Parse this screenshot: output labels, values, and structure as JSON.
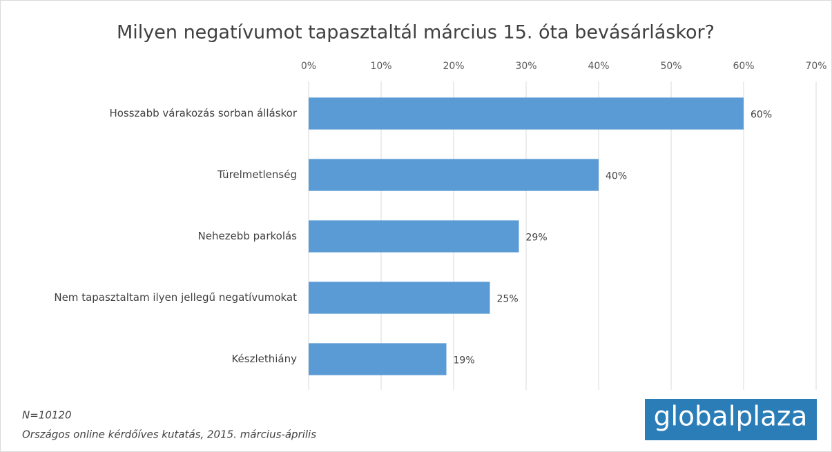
{
  "chart_data": {
    "type": "hbar",
    "title": "Milyen negatívumot tapasztaltál március 15. óta bevásárláskor?",
    "categories": [
      "Hosszabb várakozás sorban álláskor",
      "Türelmetlenség",
      "Nehezebb parkolás",
      "Nem tapasztaltam ilyen jellegű negatívumokat",
      "Készlethiány"
    ],
    "values": [
      60,
      40,
      29,
      25,
      19
    ],
    "value_labels": [
      "60%",
      "40%",
      "29%",
      "25%",
      "19%"
    ],
    "color": "#5b9bd5",
    "xlim": [
      0,
      70
    ],
    "xticks": [
      {
        "value": 0,
        "label": "0%"
      },
      {
        "value": 10,
        "label": "10%"
      },
      {
        "value": 20,
        "label": "20%"
      },
      {
        "value": 30,
        "label": "30%"
      },
      {
        "value": 40,
        "label": "40%"
      },
      {
        "value": 50,
        "label": "50%"
      },
      {
        "value": 60,
        "label": "60%"
      },
      {
        "value": 70,
        "label": "70%"
      }
    ],
    "grid": true,
    "notes": [
      "N=10120",
      "Országos online kérdőíves kutatás, 2015. március-április"
    ],
    "logo": "globalplaza"
  }
}
